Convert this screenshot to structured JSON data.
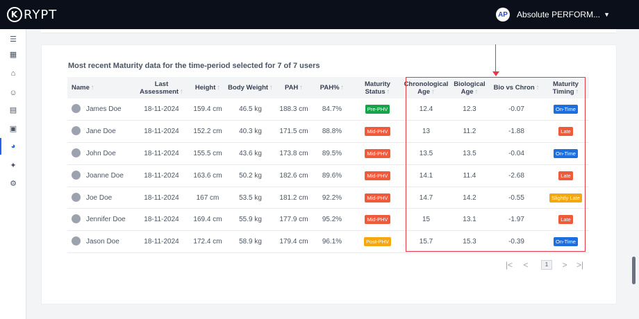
{
  "app": {
    "logo_text": "RYPT",
    "logo_mark": "K"
  },
  "org": {
    "logo_text": "AP",
    "name": "Absolute PERFORM...",
    "caret_icon": "caret-down-icon"
  },
  "sidebar": {
    "items": [
      {
        "icon": "menu-icon",
        "glyph": "☰"
      },
      {
        "icon": "calendar-icon",
        "glyph": "▦"
      },
      {
        "icon": "home-icon",
        "glyph": "⌂"
      },
      {
        "icon": "users-icon",
        "glyph": "☺"
      },
      {
        "icon": "cards-icon",
        "glyph": "▤"
      },
      {
        "icon": "gallery-icon",
        "glyph": "▣"
      },
      {
        "icon": "pie-chart-icon",
        "glyph": "◕",
        "active": true
      },
      {
        "icon": "sparkle-icon",
        "glyph": "✦"
      },
      {
        "icon": "gear-icon",
        "glyph": "⚙"
      }
    ]
  },
  "card": {
    "title": "Most recent Maturity data for the time-period selected for 7 of 7 users",
    "columns": [
      "Name",
      "Last Assessment",
      "Height",
      "Body Weight",
      "PAH",
      "PAH%",
      "Maturity Status",
      "Chronological Age",
      "Biological Age",
      "Bio vs Chron",
      "Maturity Timing"
    ],
    "sort_arrow": "↑",
    "rows": [
      {
        "name": "James Doe",
        "last": "18-11-2024",
        "height": "159.4 cm",
        "weight": "46.5 kg",
        "pah": "188.3 cm",
        "pahp": "84.7%",
        "status": "Pre-PHV",
        "status_color": "#16a34a",
        "chron": "12.4",
        "bio": "12.3",
        "diff": "-0.07",
        "timing": "On-Time",
        "timing_color": "#1d6fe0"
      },
      {
        "name": "Jane Doe",
        "last": "18-11-2024",
        "height": "152.2 cm",
        "weight": "40.3 kg",
        "pah": "171.5 cm",
        "pahp": "88.8%",
        "status": "Mid-PHV",
        "status_color": "#ef5a3b",
        "chron": "13",
        "bio": "11.2",
        "diff": "-1.88",
        "timing": "Late",
        "timing_color": "#ef5a3b"
      },
      {
        "name": "John Doe",
        "last": "18-11-2024",
        "height": "155.5 cm",
        "weight": "43.6 kg",
        "pah": "173.8 cm",
        "pahp": "89.5%",
        "status": "Mid-PHV",
        "status_color": "#ef5a3b",
        "chron": "13.5",
        "bio": "13.5",
        "diff": "-0.04",
        "timing": "On-Time",
        "timing_color": "#1d6fe0"
      },
      {
        "name": "Joanne Doe",
        "last": "18-11-2024",
        "height": "163.6 cm",
        "weight": "50.2 kg",
        "pah": "182.6 cm",
        "pahp": "89.6%",
        "status": "Mid-PHV",
        "status_color": "#ef5a3b",
        "chron": "14.1",
        "bio": "11.4",
        "diff": "-2.68",
        "timing": "Late",
        "timing_color": "#ef5a3b"
      },
      {
        "name": "Joe Doe",
        "last": "18-11-2024",
        "height": "167 cm",
        "weight": "53.5 kg",
        "pah": "181.2 cm",
        "pahp": "92.2%",
        "status": "Mid-PHV",
        "status_color": "#ef5a3b",
        "chron": "14.7",
        "bio": "14.2",
        "diff": "-0.55",
        "timing": "Slightly Late",
        "timing_color": "#f5a70f"
      },
      {
        "name": "Jennifer Doe",
        "last": "18-11-2024",
        "height": "169.4 cm",
        "weight": "55.9 kg",
        "pah": "177.9 cm",
        "pahp": "95.2%",
        "status": "Mid-PHV",
        "status_color": "#ef5a3b",
        "chron": "15",
        "bio": "13.1",
        "diff": "-1.97",
        "timing": "Late",
        "timing_color": "#ef5a3b"
      },
      {
        "name": "Jason Doe",
        "last": "18-11-2024",
        "height": "172.4 cm",
        "weight": "58.9 kg",
        "pah": "179.4 cm",
        "pahp": "96.1%",
        "status": "Post-PHV",
        "status_color": "#f5a70f",
        "chron": "15.7",
        "bio": "15.3",
        "diff": "-0.39",
        "timing": "On-Time",
        "timing_color": "#1d6fe0"
      }
    ]
  },
  "pager": {
    "first": "|<",
    "prev": "<",
    "current": "1",
    "next": ">",
    "last": ">|"
  },
  "colors": {
    "highlight": "#e63946",
    "accent": "#2563eb"
  }
}
